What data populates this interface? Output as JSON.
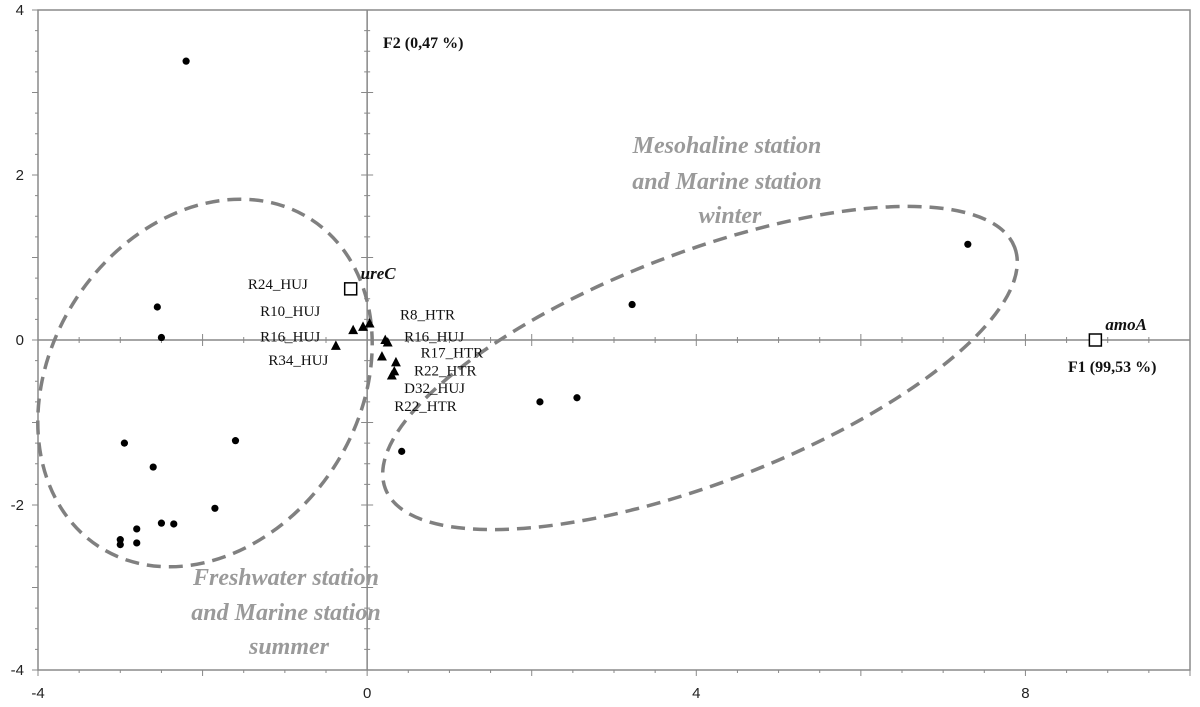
{
  "chart_data": {
    "type": "scatter",
    "xlim": [
      -4,
      10
    ],
    "ylim": [
      -4,
      4
    ],
    "x_ticks": [
      "-4",
      "0",
      "4",
      "8"
    ],
    "y_ticks": [
      "4",
      "2",
      "0",
      "-2",
      "-4"
    ],
    "x_axis_title": "F1 (99,53 %)",
    "y_axis_title": "F2 (0,47 %)",
    "grid": false,
    "series": [
      {
        "marker": "circle",
        "points": [
          {
            "x": -2.2,
            "y": 3.38
          },
          {
            "x": -2.55,
            "y": 0.4
          },
          {
            "x": -2.5,
            "y": 0.03
          },
          {
            "x": -2.95,
            "y": -1.25
          },
          {
            "x": -1.6,
            "y": -1.22
          },
          {
            "x": -2.6,
            "y": -1.54
          },
          {
            "x": -1.85,
            "y": -2.04
          },
          {
            "x": -2.5,
            "y": -2.22
          },
          {
            "x": -2.35,
            "y": -2.23
          },
          {
            "x": -2.8,
            "y": -2.29
          },
          {
            "x": -3.0,
            "y": -2.42
          },
          {
            "x": -3.0,
            "y": -2.48
          },
          {
            "x": -2.8,
            "y": -2.46
          },
          {
            "x": 0.42,
            "y": -1.35
          },
          {
            "x": 2.1,
            "y": -0.75
          },
          {
            "x": 2.55,
            "y": -0.7
          },
          {
            "x": 3.22,
            "y": 0.43
          },
          {
            "x": 7.3,
            "y": 1.16
          }
        ]
      },
      {
        "marker": "triangle",
        "points": [
          {
            "x": -0.17,
            "y": 0.12
          },
          {
            "x": -0.05,
            "y": 0.16
          },
          {
            "x": 0.03,
            "y": 0.2
          },
          {
            "x": -0.38,
            "y": -0.07
          },
          {
            "x": 0.22,
            "y": 0.0
          },
          {
            "x": 0.25,
            "y": -0.03
          },
          {
            "x": 0.35,
            "y": -0.27
          },
          {
            "x": 0.33,
            "y": -0.38
          },
          {
            "x": 0.3,
            "y": -0.43
          },
          {
            "x": 0.18,
            "y": -0.2
          }
        ]
      }
    ],
    "variables": [
      {
        "name": "ureC",
        "x": -0.2,
        "y": 0.62
      },
      {
        "name": "amoA",
        "x": 8.85,
        "y": 0.0
      }
    ],
    "point_labels": [
      {
        "text": "R24_HUJ",
        "x": -1.45,
        "y": 0.68
      },
      {
        "text": "R10_HUJ",
        "x": -1.3,
        "y": 0.35
      },
      {
        "text": "R16_HUJ",
        "x": -1.3,
        "y": 0.04
      },
      {
        "text": "R34_HUJ",
        "x": -1.2,
        "y": -0.24
      },
      {
        "text": "R8_HTR",
        "x": 0.4,
        "y": 0.31
      },
      {
        "text": "R16_HUJ",
        "x": 0.45,
        "y": 0.04
      },
      {
        "text": "R17_HTR",
        "x": 0.65,
        "y": -0.15
      },
      {
        "text": "R22_HTR",
        "x": 0.57,
        "y": -0.37
      },
      {
        "text": "D32_HUJ",
        "x": 0.45,
        "y": -0.58
      },
      {
        "text": "R22_HTR",
        "x": 0.33,
        "y": -0.8
      }
    ],
    "groups": [
      {
        "lines": [
          "Mesohaline station",
          "and Marine station",
          "winter"
        ]
      },
      {
        "lines": [
          "Freshwater station",
          "and Marine station",
          "summer"
        ]
      }
    ],
    "colors": {
      "points": "#000000",
      "axes": "#888888",
      "ellipse": "#808080",
      "group_text": "#9a9a9a"
    }
  }
}
